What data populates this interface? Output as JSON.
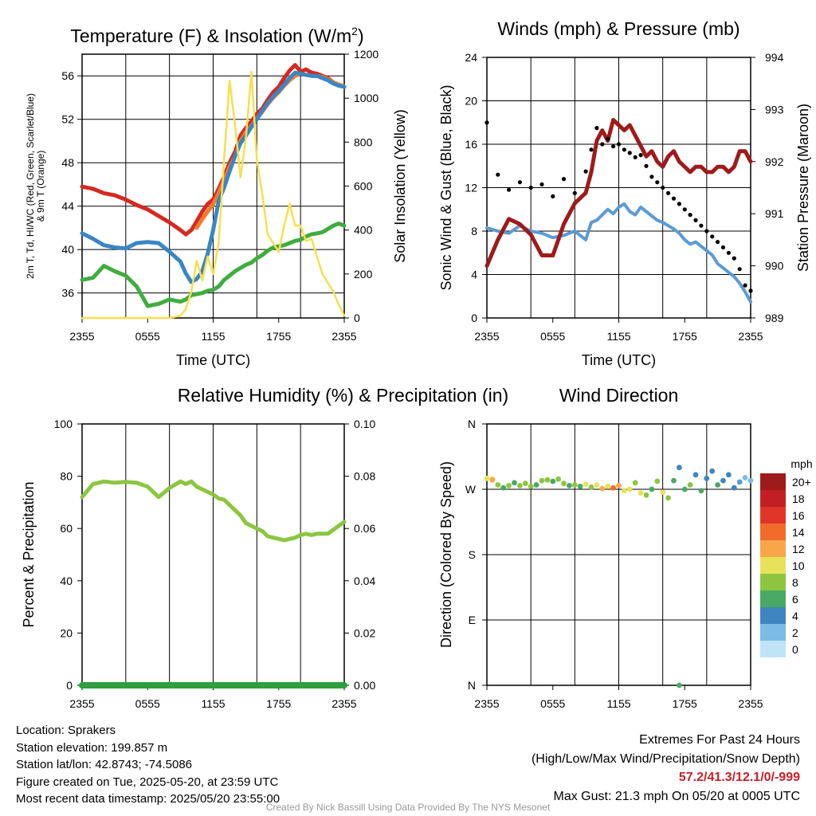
{
  "chart_data": [
    {
      "type": "line",
      "title": "Temperature (F) & Insolation (W/m²)",
      "xlabel": "Time (UTC)",
      "ylabel_left": "2m T, Td, HI/WC (Red, Green, Scarlet/Blue) & 9m T (Orange)",
      "ylabel_right": "Solar Insolation (Yellow)",
      "x_ticks": [
        "2355",
        "0555",
        "1155",
        "1755",
        "2355"
      ],
      "ylim_left": [
        33.7,
        58.0
      ],
      "ylim_right": [
        0,
        1200
      ],
      "y_ticks_left": [
        36,
        40,
        44,
        48,
        52,
        56
      ],
      "y_ticks_right": [
        0,
        200,
        400,
        600,
        800,
        1000,
        1200
      ],
      "x_hours": [
        0,
        1,
        2,
        3,
        4,
        5,
        6,
        7,
        8,
        9,
        9.5,
        10,
        10.5,
        11,
        11.5,
        12,
        12.5,
        13,
        13.5,
        14,
        14.5,
        15,
        15.5,
        16,
        16.5,
        17,
        17.5,
        18,
        18.5,
        19,
        19.5,
        20,
        20.5,
        21,
        21.5,
        22,
        22.5,
        23,
        23.5,
        24
      ],
      "series": [
        {
          "color": "#d42a20",
          "axis": "left",
          "values": [
            45.8,
            45.6,
            45.2,
            45.0,
            44.6,
            44.1,
            43.7,
            43.1,
            42.5,
            41.8,
            41.4,
            41.8,
            42.6,
            43.5,
            44.2,
            44.6,
            45.6,
            46.7,
            48.0,
            49.0,
            50.5,
            51.2,
            51.8,
            52.5,
            53.0,
            53.8,
            54.5,
            55.0,
            55.8,
            56.5,
            57.0,
            56.4,
            56.6,
            56.3,
            56.2,
            56.0,
            55.8,
            55.4,
            55.2,
            55.0
          ]
        },
        {
          "color": "#f47b2a",
          "axis": "left",
          "values": [
            null,
            null,
            null,
            null,
            null,
            null,
            null,
            null,
            null,
            null,
            null,
            null,
            42.0,
            42.8,
            43.5,
            44.2,
            45.2,
            46.4,
            47.6,
            48.6,
            50.0,
            50.8,
            51.4,
            52.1,
            52.7,
            53.4,
            54.0,
            54.5,
            55.1,
            55.6,
            56.0,
            56.2,
            56.1,
            56.0,
            56.0,
            55.9,
            55.7,
            55.4,
            55.2,
            55.0
          ]
        },
        {
          "color": "#3a86c4",
          "axis": "left",
          "values": [
            41.5,
            41.0,
            40.4,
            40.2,
            40.1,
            40.6,
            40.7,
            40.6,
            39.8,
            38.9,
            37.8,
            37.0,
            37.3,
            38.0,
            39.6,
            41.8,
            44.5,
            45.7,
            47.2,
            48.6,
            49.8,
            50.5,
            51.3,
            52.0,
            52.8,
            53.5,
            54.1,
            54.6,
            55.2,
            55.8,
            56.3,
            56.2,
            56.1,
            56.0,
            56.0,
            55.8,
            55.6,
            55.3,
            55.1,
            55.0
          ]
        },
        {
          "color": "#3fad3f",
          "axis": "left",
          "values": [
            37.2,
            37.4,
            38.5,
            38.0,
            37.6,
            36.6,
            34.8,
            35.0,
            35.4,
            35.2,
            35.4,
            35.8,
            35.9,
            36.0,
            36.2,
            36.3,
            36.6,
            37.2,
            37.6,
            38.0,
            38.3,
            38.6,
            38.8,
            39.2,
            39.5,
            39.9,
            40.2,
            40.3,
            40.4,
            40.6,
            40.8,
            40.9,
            41.2,
            41.4,
            41.5,
            41.6,
            41.9,
            42.2,
            42.4,
            42.2
          ]
        },
        {
          "color": "#f7df4e",
          "axis": "right",
          "values": [
            0,
            0,
            0,
            0,
            0,
            0,
            0,
            0,
            0,
            10,
            40,
            120,
            260,
            170,
            280,
            200,
            340,
            720,
            1080,
            880,
            640,
            820,
            1120,
            720,
            560,
            380,
            340,
            300,
            420,
            520,
            420,
            420,
            350,
            360,
            280,
            200,
            160,
            120,
            60,
            10
          ]
        }
      ]
    },
    {
      "type": "line",
      "title": "Winds (mph) & Pressure (mb)",
      "xlabel": "Time (UTC)",
      "ylabel_left": "Sonic Wind & Gust (Blue, Black)",
      "ylabel_right": "Station Pressure (Maroon)",
      "x_ticks": [
        "2355",
        "0555",
        "1155",
        "1755",
        "2355"
      ],
      "ylim_left": [
        0,
        24
      ],
      "ylim_right": [
        989,
        994
      ],
      "y_ticks_left": [
        0,
        4,
        8,
        12,
        16,
        20,
        24
      ],
      "y_ticks_right": [
        989,
        990,
        991,
        992,
        993,
        994
      ],
      "x_hours": [
        0,
        1,
        2,
        3,
        4,
        5,
        6,
        7,
        8,
        9,
        9.5,
        10,
        10.5,
        11,
        11.5,
        12,
        12.5,
        13,
        13.5,
        14,
        14.5,
        15,
        15.5,
        16,
        16.5,
        17,
        17.5,
        18,
        18.5,
        19,
        19.5,
        20,
        20.5,
        21,
        21.5,
        22,
        22.5,
        23,
        23.5,
        24
      ],
      "series": [
        {
          "color": "#5b9bd4",
          "axis": "left",
          "values": [
            8.3,
            8.0,
            7.8,
            8.5,
            8.0,
            7.8,
            7.4,
            7.6,
            8.0,
            7.2,
            8.8,
            9.0,
            9.5,
            10.0,
            9.6,
            10.2,
            10.5,
            9.8,
            9.5,
            10.2,
            9.8,
            9.4,
            9.0,
            8.8,
            8.5,
            8.2,
            7.8,
            7.2,
            6.8,
            7.0,
            6.6,
            6.2,
            5.8,
            5.0,
            4.6,
            4.2,
            3.8,
            3.2,
            2.4,
            1.5
          ]
        },
        {
          "color": "#9e1b1b",
          "axis": "right",
          "values": [
            990.0,
            990.5,
            990.9,
            990.8,
            990.6,
            990.2,
            990.2,
            990.8,
            991.2,
            991.4,
            991.8,
            992.4,
            992.6,
            992.4,
            992.8,
            992.7,
            992.6,
            992.7,
            992.5,
            992.3,
            992.1,
            992.2,
            992.0,
            991.9,
            992.1,
            992.2,
            992.0,
            991.9,
            991.8,
            991.9,
            991.9,
            991.8,
            991.8,
            991.9,
            991.9,
            991.8,
            991.9,
            992.2,
            992.2,
            992.0
          ]
        },
        {
          "color": "#000000",
          "axis": "left",
          "style": "points",
          "values": [
            18.0,
            13.2,
            11.8,
            12.5,
            12.0,
            12.3,
            11.2,
            12.8,
            11.5,
            13.5,
            15.5,
            17.5,
            16.0,
            16.5,
            15.8,
            16.0,
            15.5,
            15.2,
            14.8,
            15.0,
            14.0,
            13.0,
            12.5,
            12.0,
            11.5,
            11.0,
            10.5,
            10.0,
            9.5,
            9.0,
            8.5,
            8.0,
            7.5,
            7.0,
            6.5,
            6.0,
            5.5,
            4.5,
            3.0,
            2.5
          ]
        }
      ]
    },
    {
      "type": "line",
      "title": "Relative Humidity (%) & Precipitation (in)",
      "ylabel_left": "Percent & Precipitation",
      "x_ticks": [
        "2355",
        "0555",
        "1155",
        "1755",
        "2355"
      ],
      "ylim_left": [
        0,
        100
      ],
      "ylim_right": [
        0,
        0.1
      ],
      "y_ticks_left": [
        0,
        20,
        40,
        60,
        80,
        100
      ],
      "y_ticks_right": [
        "0.00",
        "0.02",
        "0.04",
        "0.06",
        "0.08",
        "0.10"
      ],
      "x_hours": [
        0,
        1,
        2,
        3,
        4,
        5,
        6,
        7,
        8,
        9,
        9.5,
        10,
        10.5,
        11,
        11.5,
        12,
        12.5,
        13,
        13.5,
        14,
        14.5,
        15,
        15.5,
        16,
        16.5,
        17,
        17.5,
        18,
        18.5,
        19,
        19.5,
        20,
        20.5,
        21,
        21.5,
        22,
        22.5,
        23,
        23.5,
        24
      ],
      "series": [
        {
          "color": "#8cc63f",
          "axis": "left",
          "values": [
            72,
            77,
            78,
            77.5,
            77.8,
            77.5,
            76,
            72,
            75.5,
            78,
            77,
            78,
            76,
            75,
            74,
            73,
            71.5,
            71,
            69,
            67,
            65,
            62,
            61,
            60,
            59,
            57,
            56.5,
            56,
            55.5,
            56,
            56.5,
            57.5,
            58,
            57.5,
            58,
            58,
            58,
            59.5,
            61,
            62.5
          ]
        },
        {
          "color": "#2e9e3e",
          "axis": "left",
          "values": [
            0,
            0,
            0,
            0,
            0,
            0,
            0,
            0,
            0,
            0,
            0,
            0,
            0,
            0,
            0,
            0,
            0,
            0,
            0,
            0,
            0,
            0,
            0,
            0,
            0,
            0,
            0,
            0,
            0,
            0,
            0,
            0,
            0,
            0,
            0,
            0,
            0,
            0,
            0,
            0
          ]
        }
      ]
    },
    {
      "type": "scatter",
      "title": "Wind Direction",
      "ylabel_left": "Direction (Colored By Speed)",
      "x_ticks": [
        "2355",
        "0555",
        "1155",
        "1755",
        "2355"
      ],
      "y_ticks_left": [
        "N",
        "E",
        "S",
        "W",
        "N"
      ],
      "legend_title": "mph",
      "legend_labels": [
        "20+",
        "18",
        "16",
        "14",
        "12",
        "10",
        "8",
        "6",
        "4",
        "2",
        "0"
      ],
      "legend_colors": [
        "#9e1b1b",
        "#c21f25",
        "#e0362a",
        "#f26b2a",
        "#f9a64a",
        "#e8e25a",
        "#8cc63f",
        "#4aa865",
        "#3f86c0",
        "#7cbbe6",
        "#bfe4f8"
      ],
      "points": [
        {
          "h": 0,
          "d": 285,
          "c": "#e8e25a"
        },
        {
          "h": 0.5,
          "d": 284,
          "c": "#e8e25a"
        },
        {
          "h": 0.5,
          "d": 283,
          "c": "#f9a64a"
        },
        {
          "h": 1,
          "d": 276,
          "c": "#8cc63f"
        },
        {
          "h": 1.5,
          "d": 272,
          "c": "#4aa865"
        },
        {
          "h": 2,
          "d": 275,
          "c": "#8cc63f"
        },
        {
          "h": 2.5,
          "d": 279,
          "c": "#4aa865"
        },
        {
          "h": 3,
          "d": 275,
          "c": "#8cc63f"
        },
        {
          "h": 3.5,
          "d": 278,
          "c": "#8cc63f"
        },
        {
          "h": 4,
          "d": 274,
          "c": "#8cc63f"
        },
        {
          "h": 4.5,
          "d": 276,
          "c": "#4aa865"
        },
        {
          "h": 5,
          "d": 282,
          "c": "#8cc63f"
        },
        {
          "h": 5.5,
          "d": 283,
          "c": "#8cc63f"
        },
        {
          "h": 6,
          "d": 281,
          "c": "#4aa865"
        },
        {
          "h": 6.5,
          "d": 284,
          "c": "#8cc63f"
        },
        {
          "h": 7,
          "d": 278,
          "c": "#8cc63f"
        },
        {
          "h": 7.5,
          "d": 275,
          "c": "#4aa865"
        },
        {
          "h": 8,
          "d": 276,
          "c": "#8cc63f"
        },
        {
          "h": 8.5,
          "d": 274,
          "c": "#4aa865"
        },
        {
          "h": 9,
          "d": 277,
          "c": "#e8e25a"
        },
        {
          "h": 9.5,
          "d": 273,
          "c": "#8cc63f"
        },
        {
          "h": 10,
          "d": 276,
          "c": "#e8e25a"
        },
        {
          "h": 10.5,
          "d": 271,
          "c": "#f9a64a"
        },
        {
          "h": 11,
          "d": 274,
          "c": "#e8e25a"
        },
        {
          "h": 11.5,
          "d": 272,
          "c": "#f26b2a"
        },
        {
          "h": 12,
          "d": 275,
          "c": "#f9a64a"
        },
        {
          "h": 12.5,
          "d": 268,
          "c": "#e8e25a"
        },
        {
          "h": 13,
          "d": 270,
          "c": "#e8e25a"
        },
        {
          "h": 13.5,
          "d": 279,
          "c": "#8cc63f"
        },
        {
          "h": 14,
          "d": 265,
          "c": "#e8e25a"
        },
        {
          "h": 14.5,
          "d": 262,
          "c": "#8cc63f"
        },
        {
          "h": 15,
          "d": 270,
          "c": "#4aa865"
        },
        {
          "h": 15.5,
          "d": 281,
          "c": "#8cc63f"
        },
        {
          "h": 16,
          "d": 266,
          "c": "#e8e25a"
        },
        {
          "h": 16.5,
          "d": 258,
          "c": "#8cc63f"
        },
        {
          "h": 17,
          "d": 282,
          "c": "#4aa865"
        },
        {
          "h": 17.5,
          "d": 300,
          "c": "#3f86c0"
        },
        {
          "h": 18,
          "d": 270,
          "c": "#4aa865"
        },
        {
          "h": 18.5,
          "d": 276,
          "c": "#8cc63f"
        },
        {
          "h": 19,
          "d": 290,
          "c": "#3f86c0"
        },
        {
          "h": 19.5,
          "d": 268,
          "c": "#4aa865"
        },
        {
          "h": 20,
          "d": 285,
          "c": "#3f86c0"
        },
        {
          "h": 20.5,
          "d": 295,
          "c": "#3f86c0"
        },
        {
          "h": 21,
          "d": 276,
          "c": "#4aa865"
        },
        {
          "h": 21.5,
          "d": 282,
          "c": "#3f86c0"
        },
        {
          "h": 22,
          "d": 290,
          "c": "#3f86c0"
        },
        {
          "h": 22.5,
          "d": 272,
          "c": "#3f86c0"
        },
        {
          "h": 23,
          "d": 280,
          "c": "#5b9bd4"
        },
        {
          "h": 23.5,
          "d": 286,
          "c": "#7cbbe6"
        },
        {
          "h": 24,
          "d": 282,
          "c": "#7cbbe6"
        },
        {
          "h": 17.5,
          "d": 0,
          "c": "#4aa865"
        }
      ]
    }
  ],
  "footer": {
    "location": "Location: Sprakers",
    "elevation": "Station elevation: 199.857 m",
    "latlon": "Station lat/lon: 42.8743; -74.5086",
    "created": "Figure created on Tue, 2025-05-20, at 23:59 UTC",
    "recent": "Most recent data timestamp: 2025/05/20 23:55:00",
    "extremes_title": "Extremes For Past 24 Hours",
    "extremes_sub": "(High/Low/Max Wind/Precipitation/Snow Depth)",
    "extremes_values": "57.2/41.3/12.1/0/-999",
    "max_gust": "Max Gust: 21.3 mph On 05/20 at 0005 UTC",
    "credit": "Created By Nick Bassill Using Data Provided By The NYS Mesonet"
  }
}
